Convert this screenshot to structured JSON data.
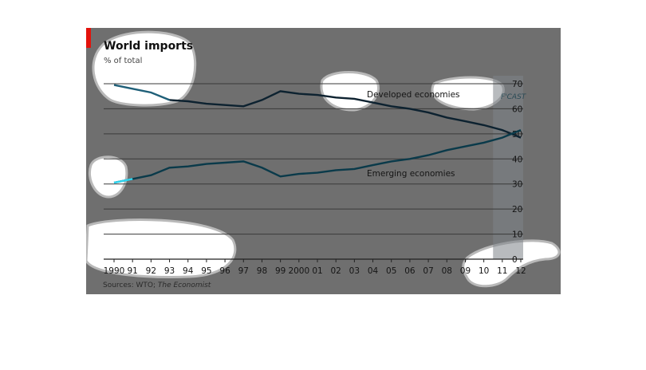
{
  "chart_data": {
    "type": "line",
    "title": "World imports",
    "subtitle": "% of total",
    "source_prefix": "Sources: WTO; ",
    "source_italic": "The Economist",
    "forecast_label": "F'CAST",
    "forecast_from": "11",
    "x": [
      "1990",
      "91",
      "92",
      "93",
      "94",
      "95",
      "96",
      "97",
      "98",
      "99",
      "2000",
      "01",
      "02",
      "03",
      "04",
      "05",
      "06",
      "07",
      "08",
      "09",
      "10",
      "11",
      "12"
    ],
    "yticks": [
      0,
      10,
      20,
      30,
      40,
      50,
      60,
      70
    ],
    "ylim": [
      0,
      70
    ],
    "series": [
      {
        "name": "Developed economies",
        "color": "#0d2230",
        "values": [
          69.5,
          68,
          66.5,
          63.5,
          63,
          62,
          61.5,
          61,
          63.5,
          67,
          66,
          65.5,
          64.5,
          64,
          62.5,
          61,
          60,
          58.5,
          56.5,
          55,
          53.5,
          51.5,
          48.5
        ]
      },
      {
        "name": "Emerging economies",
        "color": "#0a3a4a",
        "values": [
          30.5,
          32,
          33.5,
          36.5,
          37,
          38,
          38.5,
          39,
          36.5,
          33,
          34,
          34.5,
          35.5,
          36,
          37.5,
          39,
          40,
          41.5,
          43.5,
          45,
          46.5,
          48.5,
          51.5
        ]
      }
    ]
  },
  "colors": {
    "panel": "#6f6f6f",
    "developed_highlight": "#1f5f78",
    "emerging_highlight": "#2fd5ef",
    "forecast_band": "#7d8388",
    "accent": "#e3120b"
  }
}
